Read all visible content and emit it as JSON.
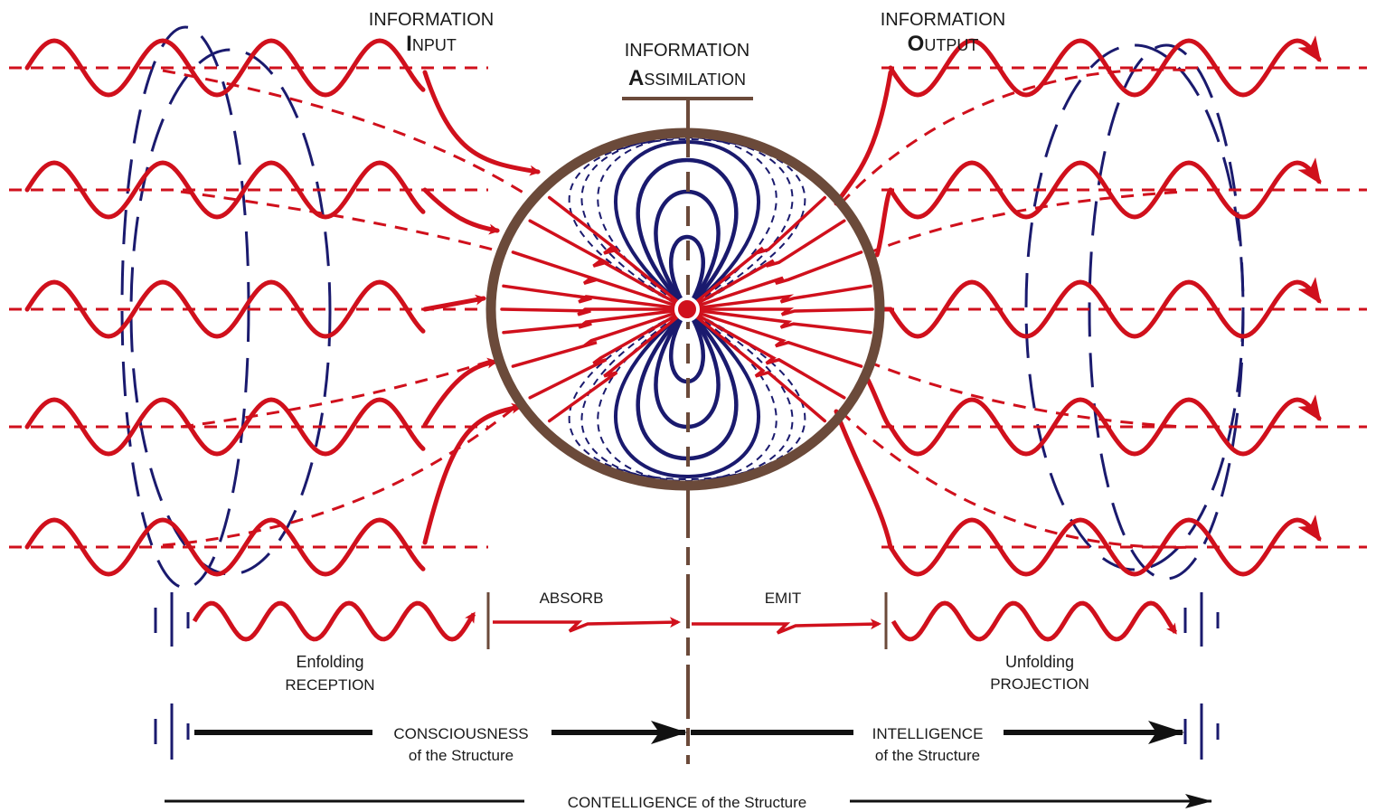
{
  "labels": {
    "input_word": "INFORMATION",
    "input_cap": "I",
    "input_rest": "NPUT",
    "assim_word": "INFORMATION",
    "assim_cap": "A",
    "assim_rest": "SSIMILATION",
    "output_word": "INFORMATION",
    "output_cap": "O",
    "output_rest": "UTPUT",
    "absorb": "ABSORB",
    "emit": "EMIT",
    "enfolding": "Enfolding",
    "reception": "RECEPTION",
    "unfolding": "Unfolding",
    "projection": "PROJECTION",
    "consciousness": "CONSCIOUSNESS",
    "consciousness_sub": "of the Structure",
    "intelligence": "INTELLIGENCE",
    "intelligence_sub": "of the Structure",
    "contelligence": "CONTELLIGENCE  of the Structure"
  },
  "colors": {
    "wave": "#d0101c",
    "field": "#1a1a6e",
    "ring": "#6b4a3a",
    "arrow": "#111111"
  }
}
